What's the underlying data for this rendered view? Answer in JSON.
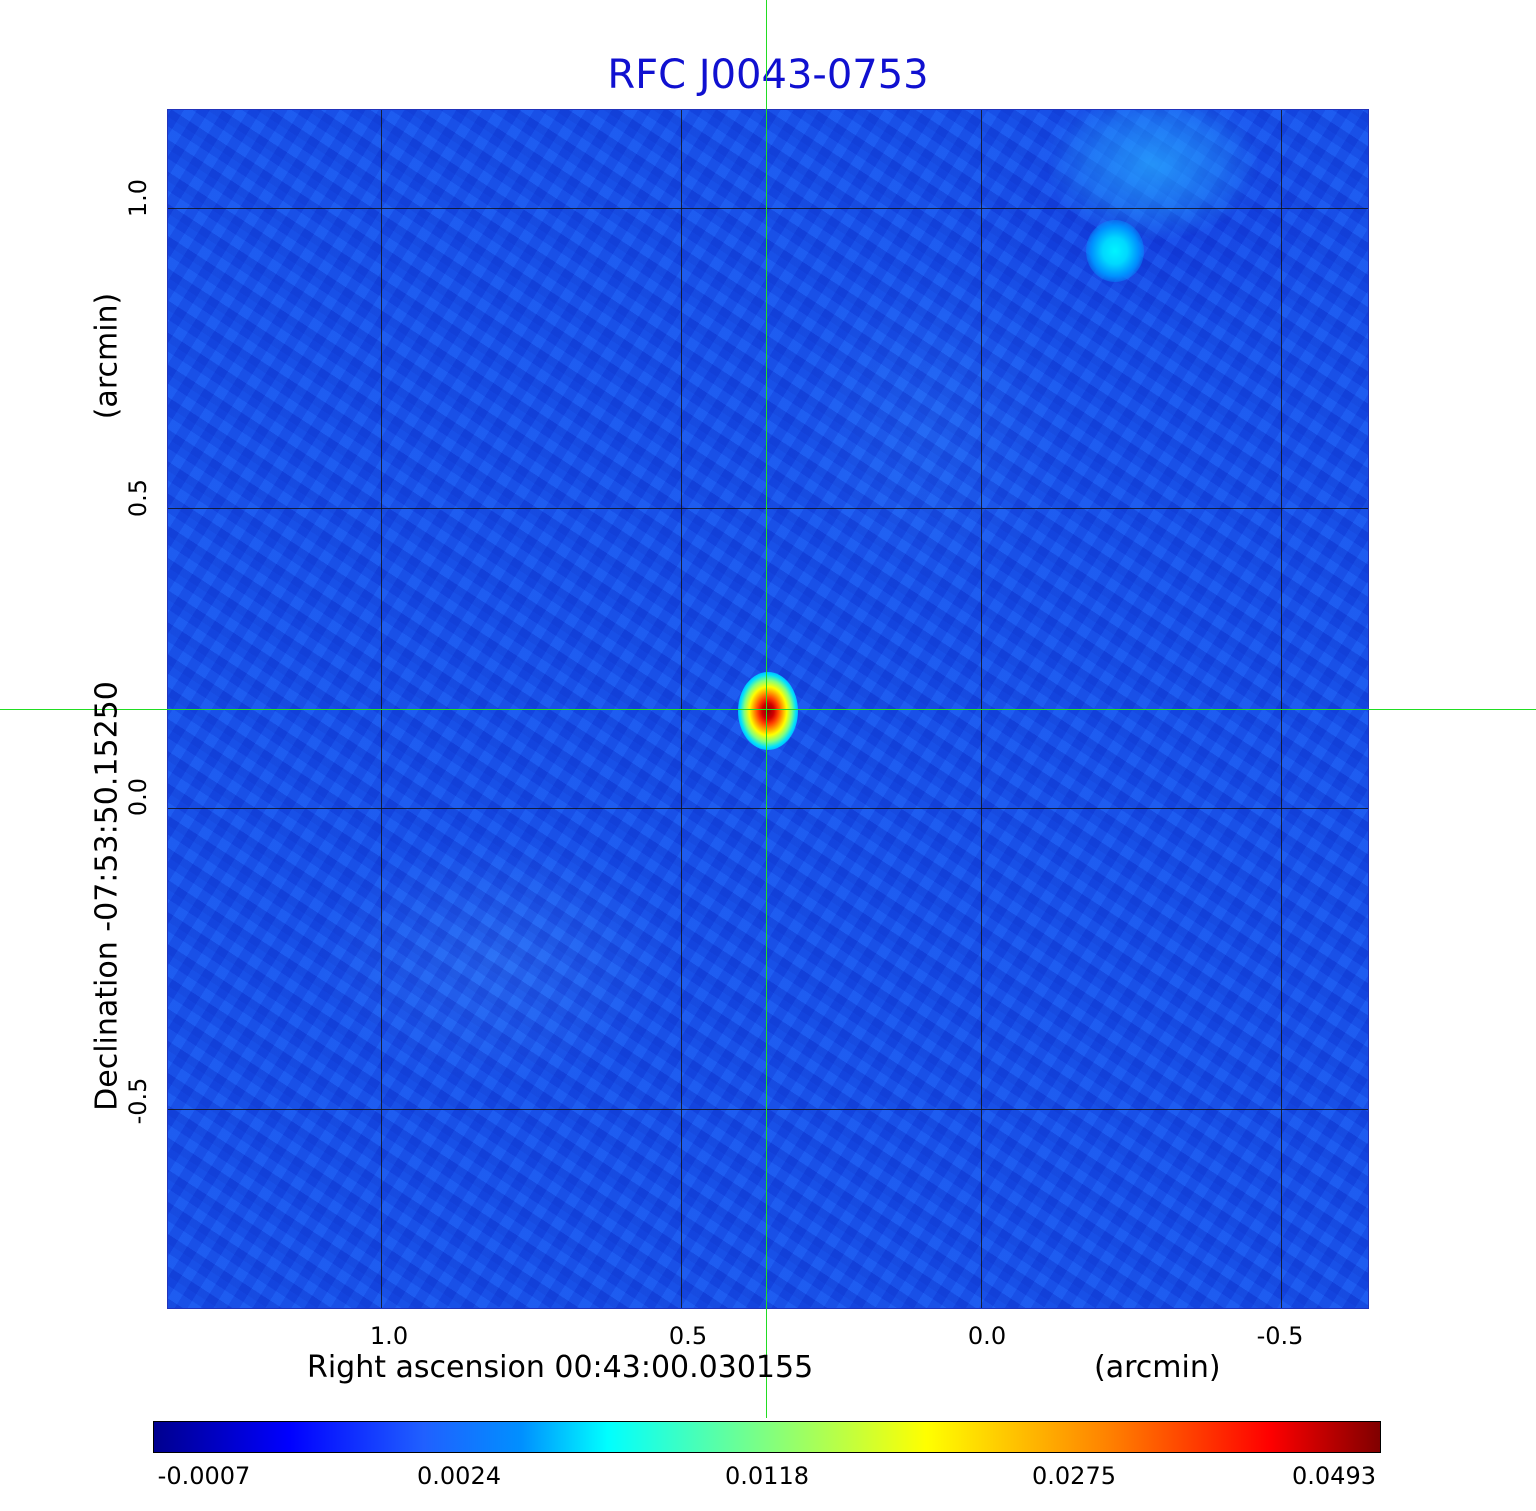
{
  "chart_data": {
    "type": "heatmap",
    "title": "RFC J0043-0753",
    "xlabel": "Right ascension  00:43:00.030155",
    "xunit": "(arcmin)",
    "ylabel": "Declination  -07:53:50.15250",
    "yunit": "(arcmin)",
    "x_ticks": [
      "1.0",
      "0.5",
      "0.0",
      "-0.5"
    ],
    "y_ticks": [
      "1.0",
      "0.5",
      "0.0",
      "-0.5"
    ],
    "x_tick_values": [
      1.0,
      0.5,
      0.0,
      -0.5
    ],
    "y_tick_values": [
      1.0,
      0.5,
      0.0,
      -0.5
    ],
    "xlim": [
      1.355,
      -0.648
    ],
    "ylim": [
      -0.835,
      1.163
    ],
    "grid": true,
    "colormap": "jet",
    "colorbar_ticks": [
      "-0.0007",
      "0.0024",
      "0.0118",
      "0.0275",
      "0.0493"
    ],
    "colorbar_values": [
      -0.0007,
      0.0024,
      0.0118,
      0.0275,
      0.0493
    ],
    "crosshair": {
      "x": 0.354,
      "y": 0.163,
      "color": "#22dd22"
    },
    "sources": [
      {
        "name": "peak",
        "x": 0.355,
        "y": 0.165,
        "value": 0.0493
      },
      {
        "name": "secondary",
        "x": -0.238,
        "y": 0.928,
        "value": 0.008
      }
    ]
  }
}
